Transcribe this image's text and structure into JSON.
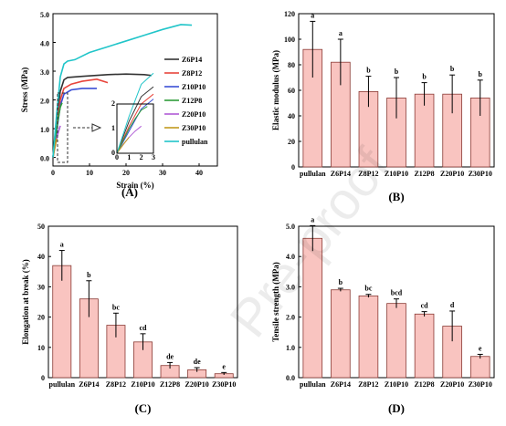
{
  "watermark": "Pre-proof",
  "chart_data": [
    {
      "type": "line",
      "panel_label": "(A)",
      "xlabel": "Strain (%)",
      "ylabel": "Stress (MPa)",
      "xlim": [
        0,
        45
      ],
      "ylim": [
        -0.3,
        5.0
      ],
      "xticks": [
        0,
        10,
        20,
        30,
        40
      ],
      "yticks": [
        0.0,
        1.0,
        2.0,
        3.0,
        4.0,
        5.0
      ],
      "ytick_labels": [
        "0.0",
        "1.0",
        "2.0",
        "3.0",
        "4.0",
        "5.0"
      ],
      "legend": "right",
      "series": [
        {
          "name": "Z6P14",
          "color": "#333333",
          "x": [
            0,
            1,
            2,
            3,
            4,
            8,
            15,
            20,
            25,
            27
          ],
          "y": [
            0,
            1.3,
            2.3,
            2.7,
            2.78,
            2.82,
            2.88,
            2.9,
            2.88,
            2.85
          ]
        },
        {
          "name": "Z8P12",
          "color": "#e8453c",
          "x": [
            0,
            1,
            2,
            3,
            5,
            8,
            12,
            15
          ],
          "y": [
            0,
            1.1,
            2.0,
            2.4,
            2.55,
            2.65,
            2.72,
            2.6
          ]
        },
        {
          "name": "Z10P10",
          "color": "#3b4fd6",
          "x": [
            0,
            1,
            2,
            3,
            5,
            8,
            12
          ],
          "y": [
            0,
            0.9,
            1.8,
            2.2,
            2.35,
            2.4,
            2.4
          ]
        },
        {
          "name": "Z12P8",
          "color": "#2f9d3a",
          "x": [
            0,
            0.5,
            1,
            1.5,
            2,
            2.5
          ],
          "y": [
            0,
            0.5,
            1.0,
            1.4,
            1.75,
            1.9
          ]
        },
        {
          "name": "Z20P10",
          "color": "#b05cd6",
          "x": [
            0,
            0.5,
            1,
            1.5,
            2
          ],
          "y": [
            0,
            0.35,
            0.65,
            0.9,
            1.1
          ]
        },
        {
          "name": "Z30P10",
          "color": "#c29a1e",
          "x": [
            0,
            0.3,
            0.6,
            1
          ],
          "y": [
            0,
            0.2,
            0.4,
            0.65
          ]
        },
        {
          "name": "pullulan",
          "color": "#21c5c9",
          "x": [
            0,
            1,
            2,
            3,
            4,
            6,
            10,
            15,
            20,
            25,
            30,
            35,
            38
          ],
          "y": [
            0,
            1.5,
            2.8,
            3.25,
            3.35,
            3.4,
            3.65,
            3.85,
            4.05,
            4.25,
            4.45,
            4.62,
            4.6
          ]
        }
      ],
      "inset": {
        "xlim": [
          0,
          3
        ],
        "ylim": [
          0,
          2
        ],
        "xticks": [
          0,
          1,
          2,
          3
        ],
        "yticks": [
          0,
          1,
          2
        ]
      }
    },
    {
      "type": "bar",
      "panel_label": "(B)",
      "ylabel": "Elastic modulus (MPa)",
      "ylim": [
        0,
        120
      ],
      "yticks": [
        0,
        20,
        40,
        60,
        80,
        100,
        120
      ],
      "categories": [
        "pullulan",
        "Z6P14",
        "Z8P12",
        "Z10P10",
        "Z12P8",
        "Z20P10",
        "Z30P10"
      ],
      "values": [
        92,
        82,
        59,
        54,
        57,
        57,
        54
      ],
      "errors": [
        22,
        18,
        12,
        16,
        9,
        15,
        14
      ],
      "letters": [
        "a",
        "a",
        "b",
        "b",
        "b",
        "b",
        "b"
      ]
    },
    {
      "type": "bar",
      "panel_label": "(C)",
      "ylabel": "Elongation at break (%)",
      "ylim": [
        0,
        50
      ],
      "yticks": [
        0,
        10,
        20,
        30,
        40,
        50
      ],
      "categories": [
        "pullulan",
        "Z6P14",
        "Z8P12",
        "Z10P10",
        "Z12P8",
        "Z20P10",
        "Z30P10"
      ],
      "values": [
        37,
        26,
        17.3,
        11.8,
        4.0,
        2.6,
        1.3
      ],
      "errors": [
        5,
        6,
        4,
        2.7,
        1.0,
        0.7,
        0.4
      ],
      "letters": [
        "a",
        "b",
        "bc",
        "cd",
        "de",
        "de",
        "e"
      ]
    },
    {
      "type": "bar",
      "panel_label": "(D)",
      "ylabel": "Tensile strength (MPa)",
      "ylim": [
        0,
        5.0
      ],
      "yticks": [
        0,
        1,
        2,
        3,
        4,
        5
      ],
      "ytick_labels": [
        "0.0",
        "1.0",
        "2.0",
        "3.0",
        "4.0",
        "5.0"
      ],
      "categories": [
        "pullulan",
        "Z6P14",
        "Z8P12",
        "Z10P10",
        "Z12P8",
        "Z20P10",
        "Z30P10"
      ],
      "values": [
        4.6,
        2.9,
        2.7,
        2.45,
        2.1,
        1.7,
        0.7
      ],
      "errors": [
        0.42,
        0.05,
        0.05,
        0.15,
        0.08,
        0.5,
        0.07
      ],
      "letters": [
        "a",
        "b",
        "bc",
        "bcd",
        "cd",
        "d",
        "e"
      ]
    }
  ],
  "colors": {
    "bar_fill": "#f9c4c0",
    "bar_edge": "#8a3a34",
    "axis": "#000000"
  }
}
